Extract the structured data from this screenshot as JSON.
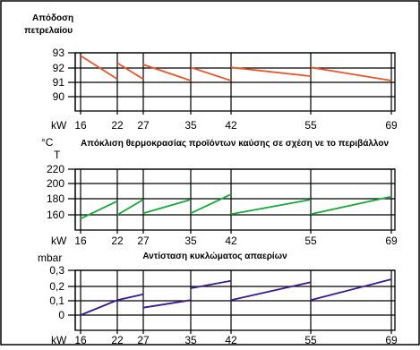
{
  "chart_data": [
    {
      "type": "line",
      "title_lines": [
        "Απόδοση",
        "πετρελαίου"
      ],
      "x_unit": "kW",
      "x_ticks": [
        "16",
        "22",
        "27",
        "35",
        "42",
        "55",
        "69"
      ],
      "y_ticks": [
        "93",
        "92",
        "91",
        "90"
      ],
      "ylim": [
        90,
        93
      ],
      "color": "#e8552a",
      "segments": [
        {
          "x": [
            16,
            22
          ],
          "y": [
            92.8,
            91.2
          ]
        },
        {
          "x": [
            22,
            27
          ],
          "y": [
            92.3,
            91.2
          ]
        },
        {
          "x": [
            27,
            35
          ],
          "y": [
            92.2,
            91.1
          ]
        },
        {
          "x": [
            35,
            42
          ],
          "y": [
            92.0,
            91.1
          ]
        },
        {
          "x": [
            42,
            55
          ],
          "y": [
            92.0,
            91.4
          ]
        },
        {
          "x": [
            55,
            69
          ],
          "y": [
            92.0,
            91.1
          ]
        }
      ]
    },
    {
      "type": "line",
      "unit_top": "°C",
      "unit_sub": "T",
      "title": "Απόκλιση θερμοκρασίας προϊόντων καύσης σε σχέση νε το περιβάλλον",
      "x_unit": "kW",
      "x_ticks": [
        "16",
        "22",
        "27",
        "35",
        "42",
        "55",
        "69"
      ],
      "y_ticks": [
        "220",
        "200",
        "180",
        "160"
      ],
      "ylim": [
        150,
        220
      ],
      "color": "#18a83a",
      "segments": [
        {
          "x": [
            16,
            22
          ],
          "y": [
            155,
            178
          ]
        },
        {
          "x": [
            22,
            27
          ],
          "y": [
            160,
            180
          ]
        },
        {
          "x": [
            27,
            35
          ],
          "y": [
            162,
            180
          ]
        },
        {
          "x": [
            35,
            42
          ],
          "y": [
            162,
            187
          ]
        },
        {
          "x": [
            42,
            55
          ],
          "y": [
            161,
            180
          ]
        },
        {
          "x": [
            55,
            69
          ],
          "y": [
            161,
            184
          ]
        }
      ]
    },
    {
      "type": "line",
      "unit_top": "mbar",
      "title": "Αντίσταση κυκλώματος απαερίων",
      "x_unit": "kW",
      "x_ticks": [
        "16",
        "22",
        "27",
        "35",
        "42",
        "55",
        "69"
      ],
      "y_ticks": [
        "0,3",
        "0,2",
        "0,1",
        "0"
      ],
      "ylim": [
        -0.05,
        0.3
      ],
      "color": "#3a1a8c",
      "segments": [
        {
          "x": [
            16,
            22
          ],
          "y": [
            0.0,
            0.1
          ]
        },
        {
          "x": [
            22,
            27
          ],
          "y": [
            0.1,
            0.14
          ]
        },
        {
          "x": [
            27,
            35
          ],
          "y": [
            0.05,
            0.1
          ]
        },
        {
          "x": [
            35,
            42
          ],
          "y": [
            0.18,
            0.23
          ]
        },
        {
          "x": [
            42,
            55
          ],
          "y": [
            0.1,
            0.22
          ]
        },
        {
          "x": [
            55,
            69
          ],
          "y": [
            0.1,
            0.24
          ]
        }
      ]
    }
  ]
}
